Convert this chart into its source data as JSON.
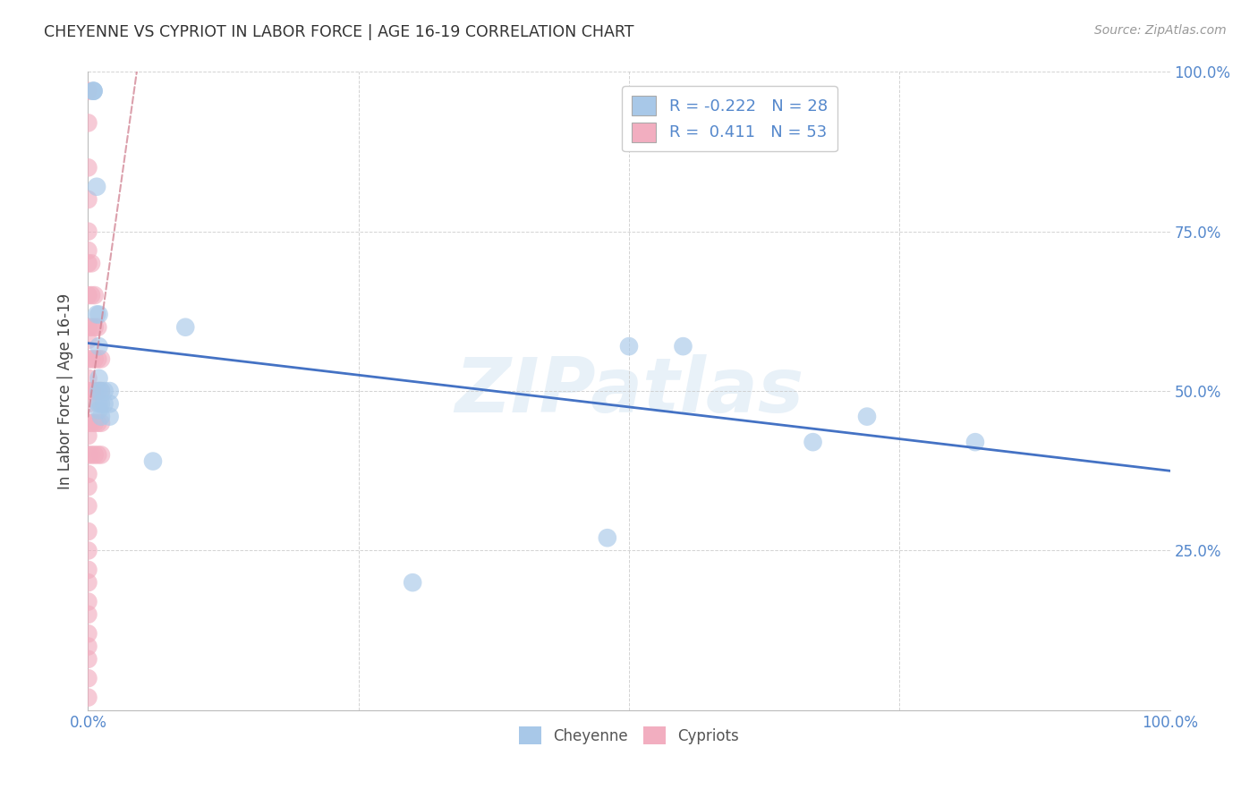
{
  "title": "CHEYENNE VS CYPRIOT IN LABOR FORCE | AGE 16-19 CORRELATION CHART",
  "source": "Source: ZipAtlas.com",
  "ylabel": "In Labor Force | Age 16-19",
  "xlim": [
    0.0,
    1.0
  ],
  "ylim": [
    0.0,
    1.0
  ],
  "xtick_positions": [
    0.0,
    0.25,
    0.5,
    0.75,
    1.0
  ],
  "ytick_positions": [
    0.0,
    0.25,
    0.5,
    0.75,
    1.0
  ],
  "xticklabels": [
    "0.0%",
    "",
    "",
    "",
    "100.0%"
  ],
  "yticklabels_right": [
    "",
    "25.0%",
    "50.0%",
    "75.0%",
    "100.0%"
  ],
  "cheyenne_color": "#a8c8e8",
  "cypriot_color": "#f2aec0",
  "blue_line_color": "#4472c4",
  "pink_line_color": "#d08090",
  "grid_color": "#c8c8c8",
  "background_color": "#ffffff",
  "watermark_text": "ZIPatlas",
  "tick_label_color": "#5588cc",
  "cheyenne_x": [
    0.005,
    0.005,
    0.005,
    0.008,
    0.008,
    0.01,
    0.01,
    0.01,
    0.01,
    0.01,
    0.01,
    0.012,
    0.012,
    0.012,
    0.015,
    0.015,
    0.02,
    0.02,
    0.02,
    0.06,
    0.09,
    0.5,
    0.67,
    0.82,
    0.72,
    0.55,
    0.48,
    0.3
  ],
  "cheyenne_y": [
    0.97,
    0.97,
    0.97,
    0.82,
    0.62,
    0.62,
    0.57,
    0.52,
    0.5,
    0.48,
    0.47,
    0.5,
    0.48,
    0.46,
    0.5,
    0.48,
    0.5,
    0.48,
    0.46,
    0.39,
    0.6,
    0.57,
    0.42,
    0.42,
    0.46,
    0.57,
    0.27,
    0.2
  ],
  "cypriot_x": [
    0.0,
    0.0,
    0.0,
    0.0,
    0.0,
    0.0,
    0.0,
    0.0,
    0.0,
    0.0,
    0.0,
    0.0,
    0.0,
    0.0,
    0.0,
    0.0,
    0.0,
    0.0,
    0.0,
    0.0,
    0.0,
    0.0,
    0.0,
    0.0,
    0.0,
    0.0,
    0.0,
    0.0,
    0.0,
    0.0,
    0.003,
    0.003,
    0.003,
    0.003,
    0.003,
    0.003,
    0.003,
    0.006,
    0.006,
    0.006,
    0.006,
    0.006,
    0.006,
    0.009,
    0.009,
    0.009,
    0.009,
    0.009,
    0.012,
    0.012,
    0.012,
    0.012,
    0.0
  ],
  "cypriot_y": [
    0.97,
    0.92,
    0.85,
    0.8,
    0.75,
    0.72,
    0.7,
    0.65,
    0.6,
    0.58,
    0.55,
    0.52,
    0.5,
    0.48,
    0.45,
    0.43,
    0.4,
    0.37,
    0.35,
    0.32,
    0.28,
    0.25,
    0.22,
    0.2,
    0.17,
    0.15,
    0.12,
    0.1,
    0.08,
    0.05,
    0.7,
    0.65,
    0.6,
    0.55,
    0.5,
    0.45,
    0.4,
    0.65,
    0.6,
    0.55,
    0.5,
    0.45,
    0.4,
    0.6,
    0.55,
    0.5,
    0.45,
    0.4,
    0.55,
    0.5,
    0.45,
    0.4,
    0.02
  ],
  "blue_line_x": [
    0.0,
    1.0
  ],
  "blue_line_y": [
    0.575,
    0.375
  ],
  "pink_line_x": [
    0.0,
    0.045
  ],
  "pink_line_y": [
    0.46,
    1.0
  ]
}
